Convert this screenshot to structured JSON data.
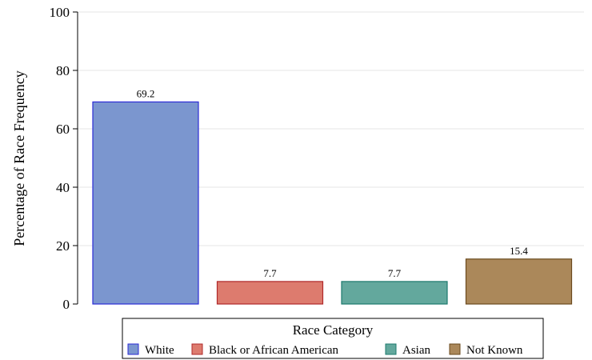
{
  "chart_data": {
    "type": "bar",
    "title": "",
    "xlabel": "",
    "ylabel": "Percentage of Race Frequency",
    "ylim": [
      0,
      100
    ],
    "yticks": [
      0,
      20,
      40,
      60,
      80,
      100
    ],
    "grid": true,
    "categories": [
      "White",
      "Black or African American",
      "Asian",
      "Not Known"
    ],
    "values": [
      69.2,
      7.7,
      7.7,
      15.4
    ],
    "data_labels": [
      "69.2",
      "7.7",
      "7.7",
      "15.4"
    ],
    "colors": [
      "#7b96cf",
      "#dd7b6e",
      "#63a89d",
      "#ab885a"
    ],
    "edge_colors": [
      "#2b2bd6",
      "#b0282a",
      "#1d7a6e",
      "#6b4a1e"
    ],
    "legend": {
      "title": "Race Category",
      "placement": "bottom",
      "entries": [
        "White",
        "Black or African American",
        "Asian",
        "Not Known"
      ]
    }
  }
}
